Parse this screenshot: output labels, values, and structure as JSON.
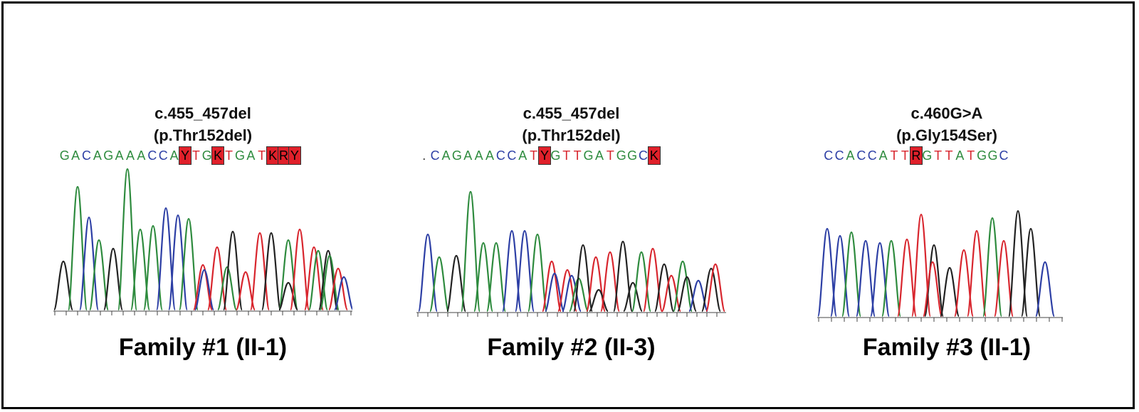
{
  "panels": [
    {
      "mutation_line1": "c.455_457del",
      "mutation_line2": "(p.Thr152del)",
      "sequence": [
        "G",
        "A",
        "C",
        "A",
        "G",
        "A",
        "A",
        "A",
        "C",
        "C",
        "A",
        "Y",
        "T",
        "G",
        "K",
        "T",
        "G",
        "A",
        "T",
        "K",
        "R",
        "Y"
      ],
      "highlighted": [
        11,
        14,
        19,
        20,
        21
      ],
      "family_label": "Family #1 (II-1)"
    },
    {
      "mutation_line1": "c.455_457del",
      "mutation_line2": "(p.Thr152del)",
      "sequence": [
        ".",
        "C",
        "A",
        "G",
        "A",
        "A",
        "A",
        "C",
        "C",
        "A",
        "T",
        "Y",
        "G",
        "T",
        "T",
        "G",
        "A",
        "T",
        "G",
        "G",
        "C",
        "K"
      ],
      "highlighted": [
        11,
        21
      ],
      "family_label": "Family #2 (II-3)"
    },
    {
      "mutation_line1": "c.460G>A",
      "mutation_line2": "(p.Gly154Ser)",
      "sequence": [
        "C",
        "C",
        "A",
        "C",
        "C",
        "A",
        "T",
        "T",
        "R",
        "G",
        "T",
        "T",
        "A",
        "T",
        "G",
        "G",
        "C"
      ],
      "highlighted": [
        8
      ],
      "family_label": "Family #3 (II-1)"
    }
  ],
  "colors": {
    "G": "#2e8b3e",
    "A": "#2e8b3e",
    "C": "#2d3fa5",
    "T": "#d8262e",
    "black_trace": "#222222",
    "highlight": "#e0202a"
  }
}
